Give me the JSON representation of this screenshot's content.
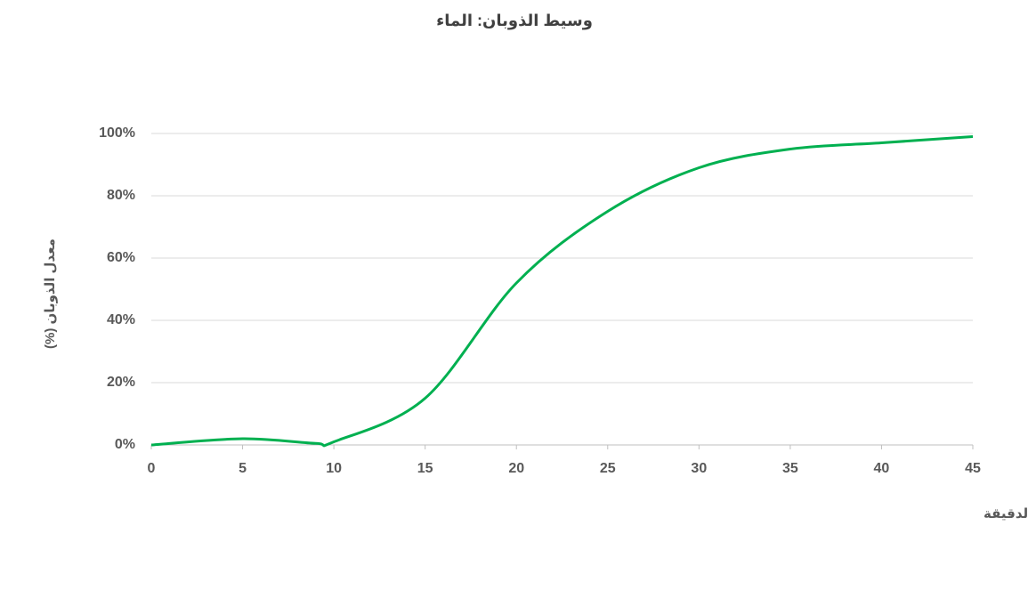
{
  "chart_data": {
    "type": "line",
    "title": "وسيط الذوبان: الماء",
    "x_label": "الوقت/الدقيقة",
    "y_label": "معدل الذوبان (%)",
    "x": [
      0,
      5,
      9,
      10,
      15,
      20,
      25,
      30,
      35,
      40,
      45
    ],
    "series": [
      {
        "name": "الماء",
        "color": "#00b050",
        "values": [
          0,
          2,
          0.5,
          1,
          15,
          52,
          75,
          89,
          95,
          97,
          99
        ]
      }
    ],
    "xlim": [
      0,
      45
    ],
    "xticks": [
      0,
      5,
      10,
      15,
      20,
      25,
      30,
      35,
      40,
      45
    ],
    "ylim": [
      0,
      100
    ],
    "yticks": [
      {
        "value": 0,
        "label": "0%"
      },
      {
        "value": 20,
        "label": "20%"
      },
      {
        "value": 40,
        "label": "40%"
      },
      {
        "value": 60,
        "label": "60%"
      },
      {
        "value": 80,
        "label": "80%"
      },
      {
        "value": 100,
        "label": "100%"
      }
    ],
    "grid": true,
    "smooth": true
  }
}
